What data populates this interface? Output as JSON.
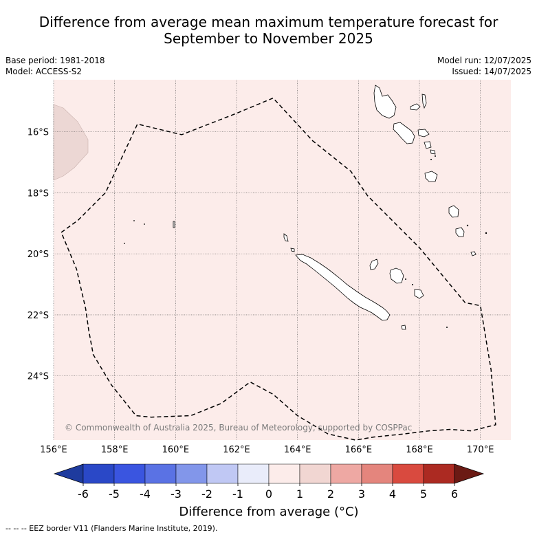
{
  "title_line1": "Difference from average mean maximum temperature forecast for",
  "title_line2": "September to November 2025",
  "meta_left": {
    "base_period": "Base period: 1981-2018",
    "model": "Model: ACCESS-S2"
  },
  "meta_right": {
    "model_run": "Model run: 12/07/2025",
    "issued": "Issued: 14/07/2025"
  },
  "map": {
    "lon_range": [
      156,
      171
    ],
    "lat_range": [
      -26.1,
      -14.3
    ],
    "background_color": "#fcecea",
    "anomaly_patch_color": "#ecd7d4",
    "lon_ticks": [
      156,
      158,
      160,
      162,
      164,
      166,
      168,
      170
    ],
    "lon_labels": [
      "156°E",
      "158°E",
      "160°E",
      "162°E",
      "164°E",
      "166°E",
      "168°E",
      "170°E"
    ],
    "lat_ticks": [
      -16,
      -18,
      -20,
      -22,
      -24
    ],
    "lat_labels": [
      "16°S",
      "18°S",
      "20°S",
      "22°S",
      "24°S"
    ],
    "copyright": "© Commonwealth of Australia 2025, Bureau of Meteorology, supported by COSPPac",
    "eez_border": [
      [
        156.25,
        -19.3
      ],
      [
        156.8,
        -18.9
      ],
      [
        157.7,
        -18.0
      ],
      [
        158.75,
        -15.75
      ],
      [
        160.2,
        -16.1
      ],
      [
        162.0,
        -15.4
      ],
      [
        163.2,
        -14.9
      ],
      [
        164.5,
        -16.3
      ],
      [
        165.75,
        -17.3
      ],
      [
        166.3,
        -18.1
      ],
      [
        167.2,
        -19.0
      ],
      [
        168.0,
        -19.8
      ],
      [
        169.0,
        -21.0
      ],
      [
        169.5,
        -21.6
      ],
      [
        170.0,
        -21.7
      ],
      [
        170.35,
        -23.8
      ],
      [
        170.5,
        -25.6
      ],
      [
        169.7,
        -25.8
      ],
      [
        169.0,
        -25.75
      ],
      [
        168.3,
        -25.8
      ],
      [
        167.5,
        -25.9
      ],
      [
        166.5,
        -26.0
      ],
      [
        165.9,
        -26.1
      ],
      [
        165.0,
        -25.9
      ],
      [
        164.0,
        -25.3
      ],
      [
        163.2,
        -24.6
      ],
      [
        162.45,
        -24.2
      ],
      [
        161.5,
        -24.9
      ],
      [
        160.5,
        -25.3
      ],
      [
        159.2,
        -25.35
      ],
      [
        158.7,
        -25.3
      ],
      [
        157.9,
        -24.3
      ],
      [
        157.3,
        -23.3
      ],
      [
        157.15,
        -22.5
      ],
      [
        157.05,
        -21.8
      ],
      [
        156.75,
        -20.5
      ],
      [
        156.25,
        -19.3
      ]
    ]
  },
  "colorbar": {
    "ticks": [
      "-6",
      "-5",
      "-4",
      "-3",
      "-2",
      "-1",
      "0",
      "1",
      "2",
      "3",
      "4",
      "5",
      "6"
    ],
    "colors": [
      "#1e3b9e",
      "#2a48c7",
      "#3a55e0",
      "#5a72e4",
      "#8296ea",
      "#c0c8f4",
      "#e9ecfa",
      "#fcecea",
      "#f1d6d2",
      "#eea8a3",
      "#e4857d",
      "#d94a3f",
      "#ac2a22",
      "#6b1a14"
    ],
    "label": "Difference from average (°C)"
  },
  "footer": "--  --  -- EEZ border V11 (Flanders Marine Institute, 2019)."
}
